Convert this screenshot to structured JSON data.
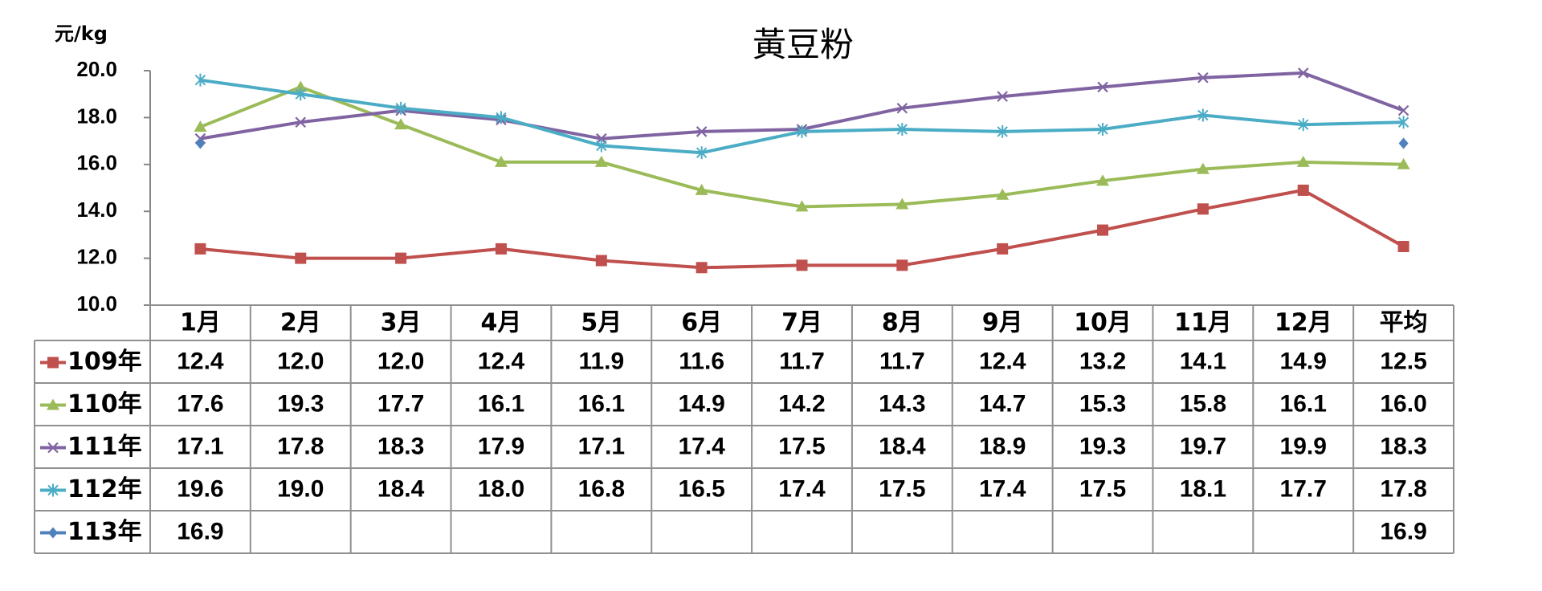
{
  "chart_data": {
    "type": "line",
    "title": "黃豆粉",
    "unit_label": "元/kg",
    "ylim": [
      10.0,
      20.0
    ],
    "y_ticks": [
      "20.0",
      "18.0",
      "16.0",
      "14.0",
      "12.0",
      "10.0"
    ],
    "categories": [
      "1月",
      "2月",
      "3月",
      "4月",
      "5月",
      "6月",
      "7月",
      "8月",
      "9月",
      "10月",
      "11月",
      "12月",
      "平均"
    ],
    "grid": false,
    "legend": "data-table",
    "series": [
      {
        "name": "109年",
        "color": "#c0504d",
        "marker": "square",
        "values": [
          12.4,
          12.0,
          12.0,
          12.4,
          11.9,
          11.6,
          11.7,
          11.7,
          12.4,
          13.2,
          14.1,
          14.9,
          12.5
        ],
        "labels": [
          "12.4",
          "12.0",
          "12.0",
          "12.4",
          "11.9",
          "11.6",
          "11.7",
          "11.7",
          "12.4",
          "13.2",
          "14.1",
          "14.9",
          "12.5"
        ]
      },
      {
        "name": "110年",
        "color": "#9bbb59",
        "marker": "triangle",
        "values": [
          17.6,
          19.3,
          17.7,
          16.1,
          16.1,
          14.9,
          14.2,
          14.3,
          14.7,
          15.3,
          15.8,
          16.1,
          16.0
        ],
        "labels": [
          "17.6",
          "19.3",
          "17.7",
          "16.1",
          "16.1",
          "14.9",
          "14.2",
          "14.3",
          "14.7",
          "15.3",
          "15.8",
          "16.1",
          "16.0"
        ]
      },
      {
        "name": "111年",
        "color": "#8064a2",
        "marker": "x",
        "values": [
          17.1,
          17.8,
          18.3,
          17.9,
          17.1,
          17.4,
          17.5,
          18.4,
          18.9,
          19.3,
          19.7,
          19.9,
          18.3
        ],
        "labels": [
          "17.1",
          "17.8",
          "18.3",
          "17.9",
          "17.1",
          "17.4",
          "17.5",
          "18.4",
          "18.9",
          "19.3",
          "19.7",
          "19.9",
          "18.3"
        ]
      },
      {
        "name": "112年",
        "color": "#4bacc6",
        "marker": "star",
        "values": [
          19.6,
          19.0,
          18.4,
          18.0,
          16.8,
          16.5,
          17.4,
          17.5,
          17.4,
          17.5,
          18.1,
          17.7,
          17.8
        ],
        "labels": [
          "19.6",
          "19.0",
          "18.4",
          "18.0",
          "16.8",
          "16.5",
          "17.4",
          "17.5",
          "17.4",
          "17.5",
          "18.1",
          "17.7",
          "17.8"
        ]
      },
      {
        "name": "113年",
        "color": "#4f81bd",
        "marker": "diamond",
        "values": [
          16.9,
          null,
          null,
          null,
          null,
          null,
          null,
          null,
          null,
          null,
          null,
          null,
          16.9
        ],
        "labels": [
          "16.9",
          "",
          "",
          "",
          "",
          "",
          "",
          "",
          "",
          "",
          "",
          "",
          "16.9"
        ]
      }
    ]
  }
}
